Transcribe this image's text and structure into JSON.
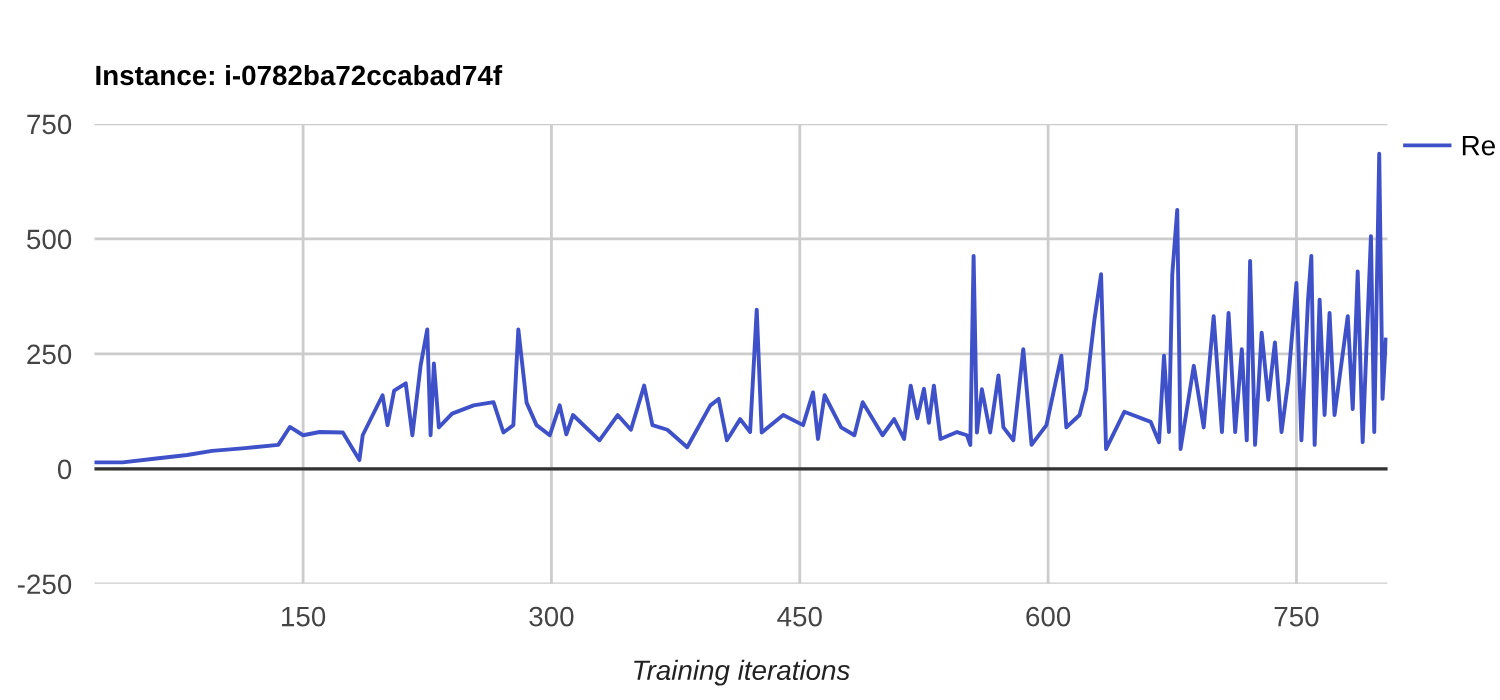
{
  "chart_data": {
    "type": "line",
    "title": "Instance: i-0782ba72ccabad74f",
    "xlabel": "Training iterations",
    "x": [
      24,
      41,
      60,
      80,
      95,
      115,
      135,
      142,
      150,
      160,
      174,
      184,
      186,
      198,
      201,
      205,
      212,
      216,
      221,
      225,
      227,
      229,
      232,
      240,
      253,
      265,
      271,
      277,
      280,
      285,
      291,
      299,
      305,
      309,
      313,
      329,
      340,
      348,
      356,
      361,
      370,
      382,
      396,
      401,
      406,
      414,
      420,
      424,
      427,
      440,
      452,
      458,
      461,
      465,
      475,
      483,
      488,
      500,
      507,
      513,
      517,
      521,
      525,
      528,
      531,
      535,
      545,
      551,
      553,
      555,
      557,
      560,
      565,
      570,
      573,
      579,
      585,
      590,
      599,
      608,
      611,
      619,
      623,
      628,
      632,
      635,
      646,
      662,
      667,
      670,
      673,
      675,
      678,
      680,
      688,
      694,
      700,
      705,
      709,
      713,
      717,
      720,
      722,
      725,
      729,
      733,
      737,
      741,
      745,
      750,
      753,
      757,
      759,
      761,
      764,
      767,
      770,
      773,
      781,
      784,
      787,
      790,
      795,
      797,
      800,
      802,
      804
    ],
    "series": [
      {
        "name": "Re",
        "color": "#3f51c9",
        "values": [
          14,
          14,
          22,
          30,
          39,
          45,
          52,
          91,
          73,
          80,
          79,
          19,
          73,
          160,
          95,
          170,
          186,
          73,
          225,
          303,
          73,
          229,
          90,
          120,
          138,
          145,
          79,
          95,
          303,
          144,
          95,
          73,
          138,
          75,
          117,
          62,
          117,
          85,
          181,
          95,
          85,
          47,
          138,
          152,
          62,
          108,
          80,
          346,
          79,
          117,
          95,
          166,
          65,
          160,
          90,
          73,
          145,
          73,
          108,
          65,
          181,
          110,
          174,
          100,
          181,
          65,
          80,
          73,
          52,
          463,
          79,
          173,
          79,
          203,
          90,
          62,
          260,
          52,
          95,
          246,
          90,
          117,
          173,
          325,
          423,
          43,
          124,
          102,
          58,
          246,
          80,
          423,
          563,
          43,
          224,
          90,
          332,
          80,
          339,
          80,
          260,
          62,
          452,
          52,
          296,
          150,
          275,
          80,
          190,
          404,
          62,
          368,
          463,
          52,
          368,
          117,
          339,
          117,
          332,
          130,
          429,
          58,
          506,
          80,
          685,
          152,
          281
        ]
      }
    ],
    "xlim": [
      24,
      805
    ],
    "ylim": [
      -250,
      750
    ],
    "xticks": [
      150,
      300,
      450,
      600,
      750
    ],
    "yticks": [
      -250,
      0,
      250,
      500,
      750
    ],
    "grid": true,
    "legend": "top right",
    "marker": "none",
    "line_style": "solid",
    "ref_lines": [
      {
        "axis": "y",
        "value": 0,
        "color": "#333333"
      }
    ]
  }
}
